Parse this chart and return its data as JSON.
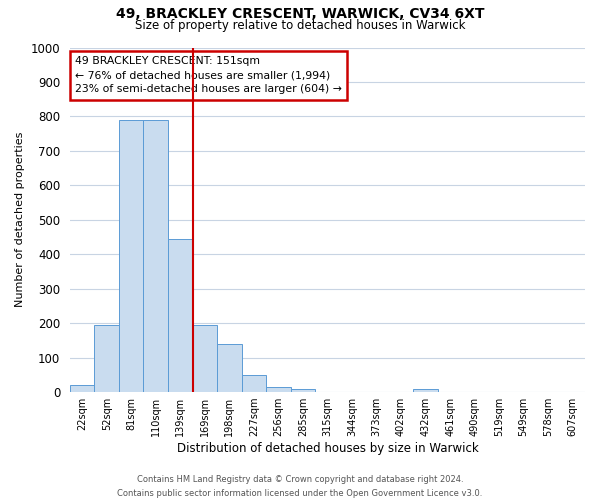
{
  "title": "49, BRACKLEY CRESCENT, WARWICK, CV34 6XT",
  "subtitle": "Size of property relative to detached houses in Warwick",
  "xlabel": "Distribution of detached houses by size in Warwick",
  "ylabel": "Number of detached properties",
  "bar_labels": [
    "22sqm",
    "52sqm",
    "81sqm",
    "110sqm",
    "139sqm",
    "169sqm",
    "198sqm",
    "227sqm",
    "256sqm",
    "285sqm",
    "315sqm",
    "344sqm",
    "373sqm",
    "402sqm",
    "432sqm",
    "461sqm",
    "490sqm",
    "519sqm",
    "549sqm",
    "578sqm",
    "607sqm"
  ],
  "bar_values": [
    20,
    195,
    790,
    790,
    445,
    195,
    140,
    50,
    15,
    10,
    0,
    0,
    0,
    0,
    10,
    0,
    0,
    0,
    0,
    0,
    0
  ],
  "bar_color": "#c9dcef",
  "bar_edge_color": "#5b9bd5",
  "reference_line_x": 4.5,
  "reference_line_color": "#cc0000",
  "ylim": [
    0,
    1000
  ],
  "yticks": [
    0,
    100,
    200,
    300,
    400,
    500,
    600,
    700,
    800,
    900,
    1000
  ],
  "annotation_title": "49 BRACKLEY CRESCENT: 151sqm",
  "annotation_line1": "← 76% of detached houses are smaller (1,994)",
  "annotation_line2": "23% of semi-detached houses are larger (604) →",
  "annotation_box_color": "#ffffff",
  "annotation_box_edge_color": "#cc0000",
  "footer_line1": "Contains HM Land Registry data © Crown copyright and database right 2024.",
  "footer_line2": "Contains public sector information licensed under the Open Government Licence v3.0.",
  "background_color": "#ffffff",
  "grid_color": "#c8d4e3"
}
